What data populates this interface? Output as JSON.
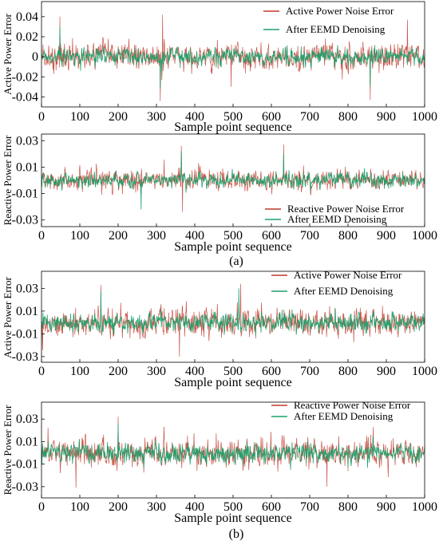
{
  "colors": {
    "noise": "#c0392b",
    "denoised": "#1aa06a"
  },
  "chart_data": [
    {
      "type": "line",
      "group": "(a)",
      "xlabel": "Sample point sequence",
      "ylabel": "Active Power Error",
      "xlim": [
        0,
        1000
      ],
      "ylim": [
        -0.05,
        0.055
      ],
      "xticks": [
        0,
        100,
        200,
        300,
        400,
        500,
        600,
        700,
        800,
        900,
        1000
      ],
      "yticks": [
        0.04,
        0.02,
        0,
        -0.02,
        -0.04
      ],
      "ytick_labels": [
        "0.04",
        "0.02",
        "0",
        "-0.02",
        "-0.04"
      ],
      "grid": false,
      "legend_position": "top-right",
      "series": [
        {
          "name": "Active Power Noise Error",
          "color": "#c0392b",
          "amplitude": 0.013,
          "spikes": [
            [
              48,
              0.04
            ],
            [
              310,
              -0.044
            ],
            [
              316,
              0.042
            ],
            [
              858,
              -0.043
            ],
            [
              955,
              0.037
            ],
            [
              495,
              -0.03
            ]
          ]
        },
        {
          "name": "After EEMD Denoising",
          "color": "#1aa06a",
          "amplitude": 0.008,
          "spikes": [
            [
              48,
              0.03
            ],
            [
              310,
              -0.032
            ],
            [
              858,
              -0.03
            ]
          ]
        }
      ]
    },
    {
      "type": "line",
      "group": "(a)",
      "xlabel": "Sample point sequence",
      "ylabel": "Reactive Power Error",
      "xlim": [
        0,
        1000
      ],
      "ylim": [
        -0.035,
        0.035
      ],
      "xticks": [
        0,
        100,
        200,
        300,
        400,
        500,
        600,
        700,
        800,
        900,
        1000
      ],
      "yticks": [
        0.03,
        0.01,
        -0.01,
        -0.03
      ],
      "ytick_labels": [
        "0.03",
        "0.01",
        "-0.01",
        "-0.03"
      ],
      "grid": false,
      "legend_position": "bottom-right",
      "series": [
        {
          "name": "Reactive Power Noise Error",
          "color": "#c0392b",
          "amplitude": 0.0075,
          "spikes": [
            [
              365,
              0.026
            ],
            [
              632,
              0.027
            ],
            [
              368,
              -0.024
            ]
          ]
        },
        {
          "name": "After EEMD Denoising",
          "color": "#1aa06a",
          "amplitude": 0.006,
          "spikes": [
            [
              365,
              0.022
            ],
            [
              632,
              0.02
            ],
            [
              260,
              -0.022
            ]
          ]
        }
      ]
    },
    {
      "type": "line",
      "group": "(b)",
      "xlabel": "Sample point sequence",
      "ylabel": "Active Power Error",
      "xlim": [
        0,
        1000
      ],
      "ylim": [
        -0.035,
        0.045
      ],
      "xticks": [
        0,
        100,
        200,
        300,
        400,
        500,
        600,
        700,
        800,
        900,
        1000
      ],
      "yticks": [
        0.03,
        0.01,
        -0.01,
        -0.03
      ],
      "ytick_labels": [
        "0.03",
        "0.01",
        "-0.01",
        "-0.03"
      ],
      "grid": false,
      "legend_position": "top-right",
      "series": [
        {
          "name": "Active Power Noise Error",
          "color": "#c0392b",
          "amplitude": 0.011,
          "spikes": [
            [
              155,
              0.033
            ],
            [
              520,
              0.034
            ],
            [
              360,
              -0.03
            ]
          ]
        },
        {
          "name": "After EEMD Denoising",
          "color": "#1aa06a",
          "amplitude": 0.009,
          "spikes": [
            [
              155,
              0.028
            ],
            [
              515,
              0.03
            ]
          ]
        }
      ]
    },
    {
      "type": "line",
      "group": "(b)",
      "xlabel": "Sample point sequence",
      "ylabel": "Reactive Power Error",
      "xlim": [
        0,
        1000
      ],
      "ylim": [
        -0.04,
        0.045
      ],
      "xticks": [
        0,
        100,
        200,
        300,
        400,
        500,
        600,
        700,
        800,
        900,
        1000
      ],
      "yticks": [
        0.03,
        0.01,
        -0.01,
        -0.03
      ],
      "ytick_labels": [
        "0.03",
        "0.01",
        "-0.01",
        "-0.03"
      ],
      "grid": false,
      "legend_position": "top-right",
      "series": [
        {
          "name": "Reactive Power Noise Error",
          "color": "#c0392b",
          "amplitude": 0.012,
          "spikes": [
            [
              200,
              0.032
            ],
            [
              90,
              -0.031
            ],
            [
              745,
              -0.03
            ]
          ]
        },
        {
          "name": "After EEMD Denoising",
          "color": "#1aa06a",
          "amplitude": 0.01,
          "spikes": [
            [
              200,
              0.026
            ]
          ]
        }
      ]
    }
  ],
  "captions": {
    "a": "(a)",
    "b": "(b)"
  }
}
